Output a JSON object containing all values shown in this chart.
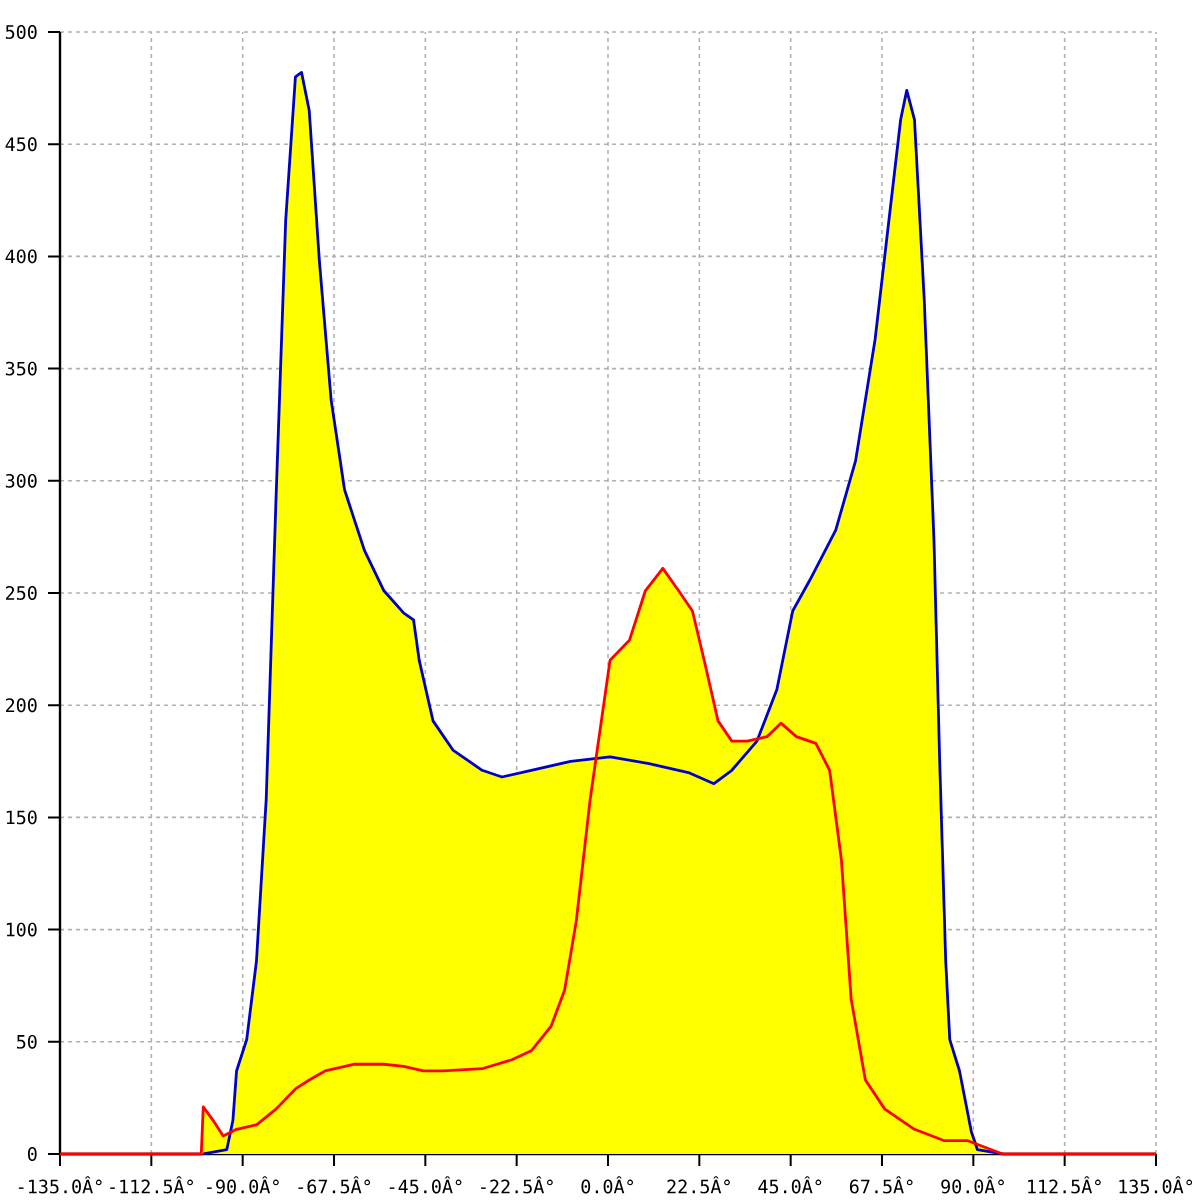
{
  "chart_data": {
    "type": "area",
    "xlim": [
      -135,
      135
    ],
    "ylim": [
      0,
      500
    ],
    "xticks": [
      {
        "value": -135,
        "label": "-135.0Â°"
      },
      {
        "value": -112.5,
        "label": "-112.5Â°"
      },
      {
        "value": -90,
        "label": "-90.0Â°"
      },
      {
        "value": -67.5,
        "label": "-67.5Â°"
      },
      {
        "value": -45,
        "label": "-45.0Â°"
      },
      {
        "value": -22.5,
        "label": "-22.5Â°"
      },
      {
        "value": 0,
        "label": "0.0Â°"
      },
      {
        "value": 22.5,
        "label": "22.5Â°"
      },
      {
        "value": 45,
        "label": "45.0Â°"
      },
      {
        "value": 67.5,
        "label": "67.5Â°"
      },
      {
        "value": 90,
        "label": "90.0Â°"
      },
      {
        "value": 112.5,
        "label": "112.5Â°"
      },
      {
        "value": 135,
        "label": "135.0Â°"
      }
    ],
    "yticks": [
      0,
      50,
      100,
      150,
      200,
      250,
      300,
      350,
      400,
      450,
      500
    ],
    "grid": true,
    "series": [
      {
        "color": "#ffff00",
        "x": [
          -100.2,
          -99.7,
          -97.3,
          -94.8,
          -93.2,
          -92.4,
          -91.5,
          -89,
          -86.6,
          -84.2,
          -81.8,
          -79.4,
          -77,
          -75.5,
          -73.6,
          -71.1,
          -68.2,
          -64.9,
          -60,
          -55.2,
          -50.3,
          -47.9,
          -46.5,
          -43.1,
          -38.2,
          -31,
          -26.1,
          -18.9,
          -9.2,
          -3,
          0.5,
          5.3,
          9.2,
          13.5,
          17.4,
          20.8,
          23.7,
          27.1,
          30.5,
          34.3,
          36.7,
          41.6,
          45.5,
          49.8,
          56.1,
          61,
          65.8,
          69.2,
          72.1,
          73.6,
          75.5,
          77.9,
          80.3,
          81.7,
          83.2,
          84.2,
          86.6,
          89.5,
          91.4,
          97.2
        ],
        "values": [
          0,
          21,
          15,
          8,
          10,
          15,
          37,
          51,
          86,
          158,
          291,
          416,
          480,
          482,
          465,
          398,
          336,
          296,
          269,
          251,
          241,
          238,
          220,
          193,
          180,
          171,
          168,
          171,
          175,
          177,
          220,
          229,
          251,
          261,
          251,
          242,
          220,
          193,
          184,
          184,
          184,
          207,
          242,
          256,
          278,
          309,
          363,
          416,
          461,
          474,
          461,
          381,
          274,
          176,
          86,
          51,
          37,
          10,
          4,
          0
        ]
      },
      {
        "type": "line",
        "color": "#0000cc",
        "x": [
          -99.7,
          -93.9,
          -92.4,
          -91.5,
          -89,
          -86.6,
          -84.2,
          -81.8,
          -79.4,
          -77,
          -75.5,
          -73.6,
          -71.1,
          -68.2,
          -64.9,
          -60,
          -55.2,
          -50.3,
          -47.9,
          -46.5,
          -43.1,
          -38.2,
          -31,
          -26.1,
          -18.9,
          -9.2,
          0.5,
          10.1,
          19.8,
          26.1,
          30.5,
          36.7,
          41.6,
          45.5,
          49.8,
          56.1,
          61,
          65.8,
          69.2,
          72.1,
          73.6,
          75.5,
          77.9,
          80.3,
          81.7,
          83.2,
          84.2,
          86.6,
          89.5,
          91,
          97.2
        ],
        "values": [
          0,
          2,
          15,
          37,
          51,
          86,
          158,
          291,
          416,
          480,
          482,
          465,
          398,
          336,
          296,
          269,
          251,
          241,
          238,
          220,
          193,
          180,
          171,
          168,
          171,
          175,
          177,
          174,
          170,
          165,
          171,
          184,
          207,
          242,
          256,
          278,
          309,
          363,
          416,
          461,
          474,
          461,
          381,
          274,
          176,
          86,
          51,
          37,
          10,
          2,
          0
        ]
      },
      {
        "type": "line",
        "color": "#ff0000",
        "x": [
          -135,
          -100.2,
          -99.7,
          -97.3,
          -94.8,
          -91.5,
          -86.6,
          -81.8,
          -77,
          -73.6,
          -69.7,
          -62.4,
          -55.2,
          -50.3,
          -45.5,
          -40.7,
          -31,
          -23.7,
          -18.9,
          -14,
          -10.7,
          -7.8,
          -4.4,
          0.5,
          5.3,
          9.2,
          13.5,
          17.4,
          20.8,
          23.7,
          27.1,
          30.5,
          34.3,
          39.2,
          42.6,
          46.4,
          51.2,
          54.6,
          57.5,
          59.9,
          63.4,
          68.2,
          75.5,
          82.7,
          88.5,
          91.4,
          97.2,
          135
        ],
        "values": [
          0,
          0,
          21,
          15,
          8,
          11,
          13,
          20,
          29,
          33,
          37,
          40,
          40,
          39,
          37,
          37,
          38,
          42,
          46,
          57,
          73,
          104,
          158,
          220,
          229,
          251,
          261,
          251,
          242,
          220,
          193,
          184,
          184,
          186,
          192,
          186,
          183,
          171,
          131,
          69,
          33,
          20,
          11,
          6,
          6,
          4,
          0,
          0
        ]
      }
    ]
  }
}
